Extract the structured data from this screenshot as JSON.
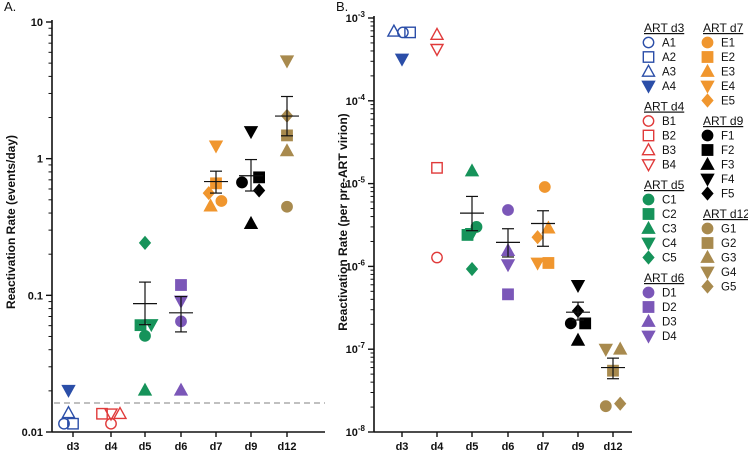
{
  "colors": {
    "d3": "#2b4ea8",
    "d4": "#e03a3a",
    "d5": "#16935a",
    "d6": "#7b57b8",
    "d7": "#f0962e",
    "d9": "#000000",
    "d12": "#a88a4e",
    "axis": "#111111",
    "dash": "#9a9a9a"
  },
  "chart_data": [
    {
      "panel_label": "A.",
      "type": "scatter",
      "ylabel": "Reactivation Rate (events/day)",
      "yscale": "log",
      "ylim": [
        0.01,
        10
      ],
      "ytick_labels": [
        "0.01",
        "0.1",
        "1",
        "10"
      ],
      "yticks": [
        0.01,
        0.1,
        1,
        10
      ],
      "categories": [
        "d3",
        "d4",
        "d5",
        "d6",
        "d7",
        "d9",
        "d12"
      ],
      "limit_line": 0.0163,
      "groups": [
        {
          "cat": "d3",
          "points": [
            {
              "id": "A1",
              "shape": "circle",
              "filled": false,
              "y": 0.0115,
              "dx": -1
            },
            {
              "id": "A2",
              "shape": "square",
              "filled": false,
              "y": 0.0115,
              "dx": 0
            },
            {
              "id": "A3",
              "shape": "tri-up",
              "filled": false,
              "y": 0.0138,
              "dx": -0.5
            },
            {
              "id": "A4",
              "shape": "tri-down",
              "filled": true,
              "y": 0.0202,
              "dx": -0.5
            }
          ]
        },
        {
          "cat": "d4",
          "points": [
            {
              "id": "B1",
              "shape": "circle",
              "filled": false,
              "y": 0.0115,
              "dx": 0
            },
            {
              "id": "B2",
              "shape": "square",
              "filled": false,
              "y": 0.0136,
              "dx": -1
            },
            {
              "id": "B3",
              "shape": "tri-up",
              "filled": false,
              "y": 0.0136,
              "dx": 1
            },
            {
              "id": "B4",
              "shape": "tri-down",
              "filled": false,
              "y": 0.0136,
              "dx": 0
            }
          ]
        },
        {
          "cat": "d5",
          "points": [
            {
              "id": "C1",
              "shape": "circle",
              "filled": true,
              "y": 0.0505,
              "dx": 0
            },
            {
              "id": "C2",
              "shape": "square",
              "filled": true,
              "y": 0.0605,
              "dx": -0.5
            },
            {
              "id": "C3",
              "shape": "tri-up",
              "filled": true,
              "y": 0.0202,
              "dx": 0
            },
            {
              "id": "C4",
              "shape": "tri-down",
              "filled": true,
              "y": 0.0612,
              "dx": 0.7
            },
            {
              "id": "C5",
              "shape": "diamond",
              "filled": true,
              "y": 0.242,
              "dx": 0
            }
          ]
        },
        {
          "cat": "d6",
          "points": [
            {
              "id": "D1",
              "shape": "circle",
              "filled": true,
              "y": 0.0645,
              "dx": 0
            },
            {
              "id": "D2",
              "shape": "square",
              "filled": true,
              "y": 0.119,
              "dx": 0
            },
            {
              "id": "D3",
              "shape": "tri-up",
              "filled": true,
              "y": 0.0202,
              "dx": 0
            },
            {
              "id": "D4",
              "shape": "tri-down",
              "filled": true,
              "y": 0.0908,
              "dx": 0
            }
          ]
        },
        {
          "cat": "d7",
          "points": [
            {
              "id": "E1",
              "shape": "circle",
              "filled": true,
              "y": 0.49,
              "dx": 0.6
            },
            {
              "id": "E2",
              "shape": "square",
              "filled": true,
              "y": 0.66,
              "dx": 0
            },
            {
              "id": "E3",
              "shape": "tri-up",
              "filled": true,
              "y": 0.45,
              "dx": -0.6
            },
            {
              "id": "E4",
              "shape": "tri-down",
              "filled": true,
              "y": 1.24,
              "dx": 0
            },
            {
              "id": "E5",
              "shape": "diamond",
              "filled": true,
              "y": 0.56,
              "dx": -0.8
            }
          ]
        },
        {
          "cat": "d9",
          "points": [
            {
              "id": "F1",
              "shape": "circle",
              "filled": true,
              "y": 0.67,
              "dx": -1
            },
            {
              "id": "F2",
              "shape": "square",
              "filled": true,
              "y": 0.73,
              "dx": 0.9
            },
            {
              "id": "F3",
              "shape": "tri-up",
              "filled": true,
              "y": 0.335,
              "dx": 0
            },
            {
              "id": "F4",
              "shape": "tri-down",
              "filled": true,
              "y": 1.58,
              "dx": 0
            },
            {
              "id": "F5",
              "shape": "diamond",
              "filled": true,
              "y": 0.585,
              "dx": 0.9
            }
          ]
        },
        {
          "cat": "d12",
          "points": [
            {
              "id": "G1",
              "shape": "circle",
              "filled": true,
              "y": 0.445,
              "dx": 0
            },
            {
              "id": "G2",
              "shape": "square",
              "filled": true,
              "y": 1.48,
              "dx": 0
            },
            {
              "id": "G3",
              "shape": "tri-up",
              "filled": true,
              "y": 1.14,
              "dx": 0
            },
            {
              "id": "G4",
              "shape": "tri-down",
              "filled": true,
              "y": 5.2,
              "dx": 0
            },
            {
              "id": "G5",
              "shape": "diamond",
              "filled": true,
              "y": 2.06,
              "dx": 0
            }
          ]
        }
      ],
      "summary": [
        {
          "cat": "d5",
          "mean": 0.087,
          "low": 0.061,
          "high": 0.125
        },
        {
          "cat": "d6",
          "mean": 0.0745,
          "low": 0.054,
          "high": 0.098
        },
        {
          "cat": "d7",
          "mean": 0.68,
          "low": 0.56,
          "high": 0.81
        },
        {
          "cat": "d9",
          "mean": 0.75,
          "low": 0.58,
          "high": 0.985
        },
        {
          "cat": "d12",
          "mean": 2.05,
          "low": 1.47,
          "high": 2.85
        }
      ]
    },
    {
      "panel_label": "B.",
      "type": "scatter",
      "ylabel": "Reactivation Rate (per pre-ART virion)",
      "yscale": "log",
      "ylim": [
        1e-08,
        0.001
      ],
      "ytick_labels": [
        {
          "base": "10",
          "exp": "-8"
        },
        {
          "base": "10",
          "exp": "-7"
        },
        {
          "base": "10",
          "exp": "-6"
        },
        {
          "base": "10",
          "exp": "-5"
        },
        {
          "base": "10",
          "exp": "-4"
        },
        {
          "base": "10",
          "exp": "-3"
        }
      ],
      "yticks": [
        1e-08,
        1e-07,
        1e-06,
        1e-05,
        0.0001,
        0.001
      ],
      "categories": [
        "d3",
        "d4",
        "d5",
        "d6",
        "d7",
        "d9",
        "d12"
      ],
      "groups": [
        {
          "cat": "d3",
          "points": [
            {
              "id": "A1",
              "shape": "circle",
              "filled": false,
              "y": 0.00067,
              "dx": 0.1
            },
            {
              "id": "A2",
              "shape": "square",
              "filled": false,
              "y": 0.00067,
              "dx": 0.9
            },
            {
              "id": "A3",
              "shape": "tri-up",
              "filled": false,
              "y": 0.00069,
              "dx": -0.9
            },
            {
              "id": "A4",
              "shape": "tri-down",
              "filled": true,
              "y": 0.00032,
              "dx": 0
            }
          ]
        },
        {
          "cat": "d4",
          "points": [
            {
              "id": "B1",
              "shape": "circle",
              "filled": false,
              "y": 1.28e-06,
              "dx": 0
            },
            {
              "id": "B2",
              "shape": "square",
              "filled": false,
              "y": 1.55e-05,
              "dx": 0
            },
            {
              "id": "B3",
              "shape": "tri-up",
              "filled": false,
              "y": 0.00063,
              "dx": 0
            },
            {
              "id": "B4",
              "shape": "tri-down",
              "filled": false,
              "y": 0.00042,
              "dx": 0
            }
          ]
        },
        {
          "cat": "d5",
          "points": [
            {
              "id": "C1",
              "shape": "circle",
              "filled": true,
              "y": 3e-06,
              "dx": 0.5
            },
            {
              "id": "C2",
              "shape": "square",
              "filled": true,
              "y": 2.4e-06,
              "dx": -0.5
            },
            {
              "id": "C3",
              "shape": "tri-up",
              "filled": true,
              "y": 1.42e-05,
              "dx": 0
            },
            {
              "id": "C4",
              "shape": "tri-down",
              "filled": true,
              "y": 2.5e-06,
              "dx": 0
            },
            {
              "id": "C5",
              "shape": "diamond",
              "filled": true,
              "y": 9.3e-07,
              "dx": 0
            }
          ]
        },
        {
          "cat": "d6",
          "points": [
            {
              "id": "D1",
              "shape": "circle",
              "filled": true,
              "y": 4.8e-06,
              "dx": 0
            },
            {
              "id": "D2",
              "shape": "square",
              "filled": true,
              "y": 4.6e-07,
              "dx": 0
            },
            {
              "id": "D3",
              "shape": "tri-up",
              "filled": true,
              "y": 1.55e-06,
              "dx": 0
            },
            {
              "id": "D4",
              "shape": "tri-down",
              "filled": true,
              "y": 1.05e-06,
              "dx": 0
            }
          ]
        },
        {
          "cat": "d7",
          "points": [
            {
              "id": "E1",
              "shape": "circle",
              "filled": true,
              "y": 9.1e-06,
              "dx": 0.2
            },
            {
              "id": "E2",
              "shape": "square",
              "filled": true,
              "y": 1.1e-06,
              "dx": 0.6
            },
            {
              "id": "E3",
              "shape": "tri-up",
              "filled": true,
              "y": 2.9e-06,
              "dx": 0.6
            },
            {
              "id": "E4",
              "shape": "tri-down",
              "filled": true,
              "y": 1.1e-06,
              "dx": -0.6
            },
            {
              "id": "E5",
              "shape": "diamond",
              "filled": true,
              "y": 2.25e-06,
              "dx": -0.6
            }
          ]
        },
        {
          "cat": "d9",
          "points": [
            {
              "id": "F1",
              "shape": "circle",
              "filled": true,
              "y": 2.05e-07,
              "dx": -0.8
            },
            {
              "id": "F2",
              "shape": "square",
              "filled": true,
              "y": 2.05e-07,
              "dx": 0.8
            },
            {
              "id": "F3",
              "shape": "tri-up",
              "filled": true,
              "y": 1.28e-07,
              "dx": 0
            },
            {
              "id": "F4",
              "shape": "tri-down",
              "filled": true,
              "y": 5.9e-07,
              "dx": 0
            },
            {
              "id": "F5",
              "shape": "diamond",
              "filled": true,
              "y": 2.9e-07,
              "dx": 0
            }
          ]
        },
        {
          "cat": "d12",
          "points": [
            {
              "id": "G1",
              "shape": "circle",
              "filled": true,
              "y": 2.05e-08,
              "dx": -0.8
            },
            {
              "id": "G2",
              "shape": "square",
              "filled": true,
              "y": 5.5e-08,
              "dx": 0
            },
            {
              "id": "G3",
              "shape": "tri-up",
              "filled": true,
              "y": 1e-07,
              "dx": 0.8
            },
            {
              "id": "G4",
              "shape": "tri-down",
              "filled": true,
              "y": 1e-07,
              "dx": -0.8
            },
            {
              "id": "G5",
              "shape": "diamond",
              "filled": true,
              "y": 2.2e-08,
              "dx": 0.8
            }
          ]
        }
      ],
      "summary": [
        {
          "cat": "d5",
          "mean": 4.4e-06,
          "low": 2.7e-06,
          "high": 7e-06
        },
        {
          "cat": "d6",
          "mean": 1.95e-06,
          "low": 1.3e-06,
          "high": 2.85e-06
        },
        {
          "cat": "d7",
          "mean": 3.3e-06,
          "low": 1.75e-06,
          "high": 4.7e-06
        },
        {
          "cat": "d9",
          "mean": 2.8e-07,
          "low": 2.25e-07,
          "high": 3.7e-07
        },
        {
          "cat": "d12",
          "mean": 6e-08,
          "low": 4.4e-08,
          "high": 7.8e-08
        }
      ]
    }
  ],
  "legend": {
    "columns": [
      [
        {
          "title": "ART d3",
          "cat": "d3",
          "items": [
            {
              "label": "A1",
              "shape": "circle",
              "filled": false
            },
            {
              "label": "A2",
              "shape": "square",
              "filled": false
            },
            {
              "label": "A3",
              "shape": "tri-up",
              "filled": false
            },
            {
              "label": "A4",
              "shape": "tri-down",
              "filled": true
            }
          ]
        },
        {
          "title": "ART d4",
          "cat": "d4",
          "items": [
            {
              "label": "B1",
              "shape": "circle",
              "filled": false
            },
            {
              "label": "B2",
              "shape": "square",
              "filled": false
            },
            {
              "label": "B3",
              "shape": "tri-up",
              "filled": false
            },
            {
              "label": "B4",
              "shape": "tri-down",
              "filled": false
            }
          ]
        },
        {
          "title": "ART d5",
          "cat": "d5",
          "items": [
            {
              "label": "C1",
              "shape": "circle",
              "filled": true
            },
            {
              "label": "C2",
              "shape": "square",
              "filled": true
            },
            {
              "label": "C3",
              "shape": "tri-up",
              "filled": true
            },
            {
              "label": "C4",
              "shape": "tri-down",
              "filled": true
            },
            {
              "label": "C5",
              "shape": "diamond",
              "filled": true
            }
          ]
        },
        {
          "title": "ART d6",
          "cat": "d6",
          "items": [
            {
              "label": "D1",
              "shape": "circle",
              "filled": true
            },
            {
              "label": "D2",
              "shape": "square",
              "filled": true
            },
            {
              "label": "D3",
              "shape": "tri-up",
              "filled": true
            },
            {
              "label": "D4",
              "shape": "tri-down",
              "filled": true
            }
          ]
        }
      ],
      [
        {
          "title": "ART d7",
          "cat": "d7",
          "items": [
            {
              "label": "E1",
              "shape": "circle",
              "filled": true
            },
            {
              "label": "E2",
              "shape": "square",
              "filled": true
            },
            {
              "label": "E3",
              "shape": "tri-up",
              "filled": true
            },
            {
              "label": "E4",
              "shape": "tri-down",
              "filled": true
            },
            {
              "label": "E5",
              "shape": "diamond",
              "filled": true
            }
          ]
        },
        {
          "title": "ART d9",
          "cat": "d9",
          "items": [
            {
              "label": "F1",
              "shape": "circle",
              "filled": true
            },
            {
              "label": "F2",
              "shape": "square",
              "filled": true
            },
            {
              "label": "F3",
              "shape": "tri-up",
              "filled": true
            },
            {
              "label": "F4",
              "shape": "tri-down",
              "filled": true
            },
            {
              "label": "F5",
              "shape": "diamond",
              "filled": true
            }
          ]
        },
        {
          "title": "ART d12",
          "cat": "d12",
          "items": [
            {
              "label": "G1",
              "shape": "circle",
              "filled": true
            },
            {
              "label": "G2",
              "shape": "square",
              "filled": true
            },
            {
              "label": "G3",
              "shape": "tri-up",
              "filled": true
            },
            {
              "label": "G4",
              "shape": "tri-down",
              "filled": true
            },
            {
              "label": "G5",
              "shape": "diamond",
              "filled": true
            }
          ]
        }
      ]
    ]
  }
}
